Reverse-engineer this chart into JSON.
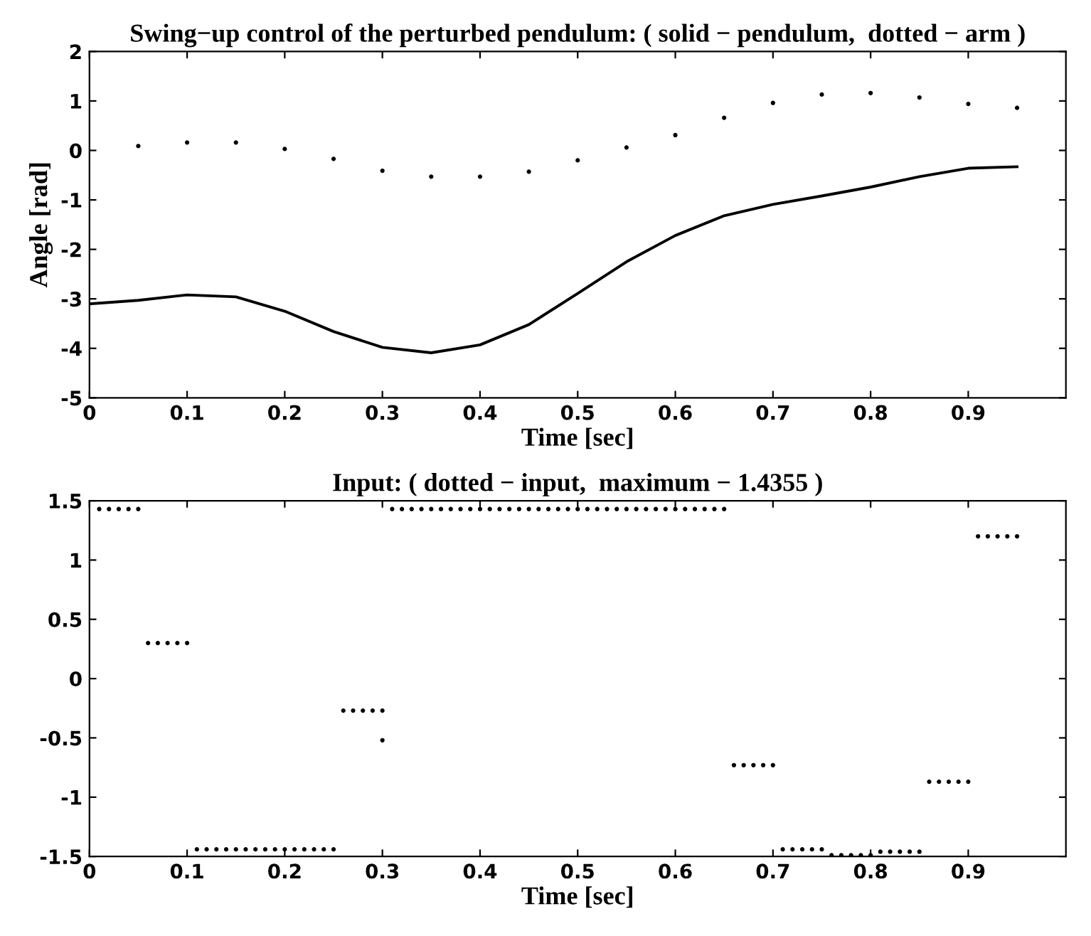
{
  "chart_data": [
    {
      "type": "line",
      "title": "Swing−up control of the perturbed pendulum: ( solid − pendulum,  dotted − arm )",
      "xlabel": "Time [sec]",
      "ylabel": "Angle [rad]",
      "xlim": [
        0,
        1
      ],
      "xticks": [
        0,
        0.1,
        0.2,
        0.3,
        0.4,
        0.5,
        0.6,
        0.7,
        0.8,
        0.9
      ],
      "ylim": [
        -5,
        2
      ],
      "yticks": [
        -5,
        -4,
        -3,
        -2,
        -1,
        0,
        1,
        2
      ],
      "grid": false,
      "legend": false,
      "series": [
        {
          "color": "#000000",
          "marker": "none",
          "line_style": "solid",
          "x": [
            0,
            0.05,
            0.1,
            0.15,
            0.2,
            0.25,
            0.3,
            0.35,
            0.4,
            0.45,
            0.5,
            0.55,
            0.6,
            0.65,
            0.7,
            0.75,
            0.8,
            0.85,
            0.9,
            0.95
          ],
          "values": [
            -3.1,
            -3.03,
            -2.92,
            -2.96,
            -3.25,
            -3.66,
            -3.98,
            -4.09,
            -3.93,
            -3.52,
            -2.89,
            -2.25,
            -1.72,
            -1.32,
            -1.09,
            -0.92,
            -0.74,
            -0.53,
            -0.36,
            -0.33
          ]
        },
        {
          "color": "#000000",
          "type": "scatter",
          "marker": "circle",
          "x": [
            0.05,
            0.1,
            0.15,
            0.2,
            0.25,
            0.3,
            0.35,
            0.4,
            0.45,
            0.5,
            0.55,
            0.6,
            0.65,
            0.7,
            0.75,
            0.8,
            0.85,
            0.9,
            0.95
          ],
          "values": [
            0.09,
            0.16,
            0.16,
            0.03,
            -0.17,
            -0.41,
            -0.53,
            -0.53,
            -0.43,
            -0.2,
            0.06,
            0.31,
            0.66,
            0.96,
            1.13,
            1.16,
            1.07,
            0.94,
            0.86
          ]
        }
      ]
    },
    {
      "type": "scatter",
      "title": "Input: ( dotted − input,  maximum − 1.4355 )",
      "xlabel": "Time [sec]",
      "xlim": [
        0,
        1
      ],
      "xticks": [
        0,
        0.1,
        0.2,
        0.3,
        0.4,
        0.5,
        0.6,
        0.7,
        0.8,
        0.9
      ],
      "ylim": [
        -1.5,
        1.5
      ],
      "yticks": [
        -1.5,
        -1,
        -0.5,
        0,
        0.5,
        1,
        1.5
      ],
      "grid": false,
      "legend": false,
      "series": [
        {
          "color": "#000000",
          "marker": "circle",
          "x": [
            0.01,
            0.02,
            0.03,
            0.04,
            0.05,
            0.06,
            0.07,
            0.08,
            0.09,
            0.1,
            0.11,
            0.12,
            0.13,
            0.14,
            0.15,
            0.16,
            0.17,
            0.18,
            0.19,
            0.2,
            0.21,
            0.22,
            0.23,
            0.24,
            0.25,
            0.26,
            0.27,
            0.28,
            0.29,
            0.3,
            0.3,
            0.31,
            0.32,
            0.33,
            0.34,
            0.35,
            0.36,
            0.37,
            0.38,
            0.39,
            0.4,
            0.41,
            0.42,
            0.43,
            0.44,
            0.45,
            0.46,
            0.47,
            0.48,
            0.49,
            0.5,
            0.51,
            0.52,
            0.53,
            0.54,
            0.55,
            0.56,
            0.57,
            0.58,
            0.59,
            0.6,
            0.61,
            0.62,
            0.63,
            0.64,
            0.65,
            0.66,
            0.67,
            0.68,
            0.69,
            0.7,
            0.71,
            0.72,
            0.73,
            0.74,
            0.75,
            0.76,
            0.77,
            0.78,
            0.79,
            0.8,
            0.81,
            0.82,
            0.83,
            0.84,
            0.85,
            0.86,
            0.87,
            0.88,
            0.89,
            0.9,
            0.91,
            0.92,
            0.93,
            0.94,
            0.95
          ],
          "values": [
            1.43,
            1.43,
            1.43,
            1.43,
            1.43,
            0.3,
            0.3,
            0.3,
            0.3,
            0.3,
            -1.44,
            -1.44,
            -1.44,
            -1.44,
            -1.44,
            -1.44,
            -1.44,
            -1.44,
            -1.44,
            -1.44,
            -1.44,
            -1.44,
            -1.44,
            -1.44,
            -1.44,
            -0.27,
            -0.27,
            -0.27,
            -0.27,
            -0.27,
            -0.52,
            1.43,
            1.43,
            1.43,
            1.43,
            1.43,
            1.43,
            1.43,
            1.43,
            1.43,
            1.43,
            1.43,
            1.43,
            1.43,
            1.43,
            1.43,
            1.43,
            1.43,
            1.43,
            1.43,
            1.43,
            1.43,
            1.43,
            1.43,
            1.43,
            1.43,
            1.43,
            1.43,
            1.43,
            1.43,
            1.43,
            1.43,
            1.43,
            1.43,
            1.43,
            1.43,
            -0.73,
            -0.73,
            -0.73,
            -0.73,
            -0.73,
            -1.44,
            -1.44,
            -1.44,
            -1.44,
            -1.44,
            -1.49,
            -1.49,
            -1.49,
            -1.49,
            -1.49,
            -1.46,
            -1.46,
            -1.46,
            -1.46,
            -1.46,
            -0.87,
            -0.87,
            -0.87,
            -0.87,
            -0.87,
            1.2,
            1.2,
            1.2,
            1.2,
            1.2
          ]
        }
      ]
    }
  ]
}
